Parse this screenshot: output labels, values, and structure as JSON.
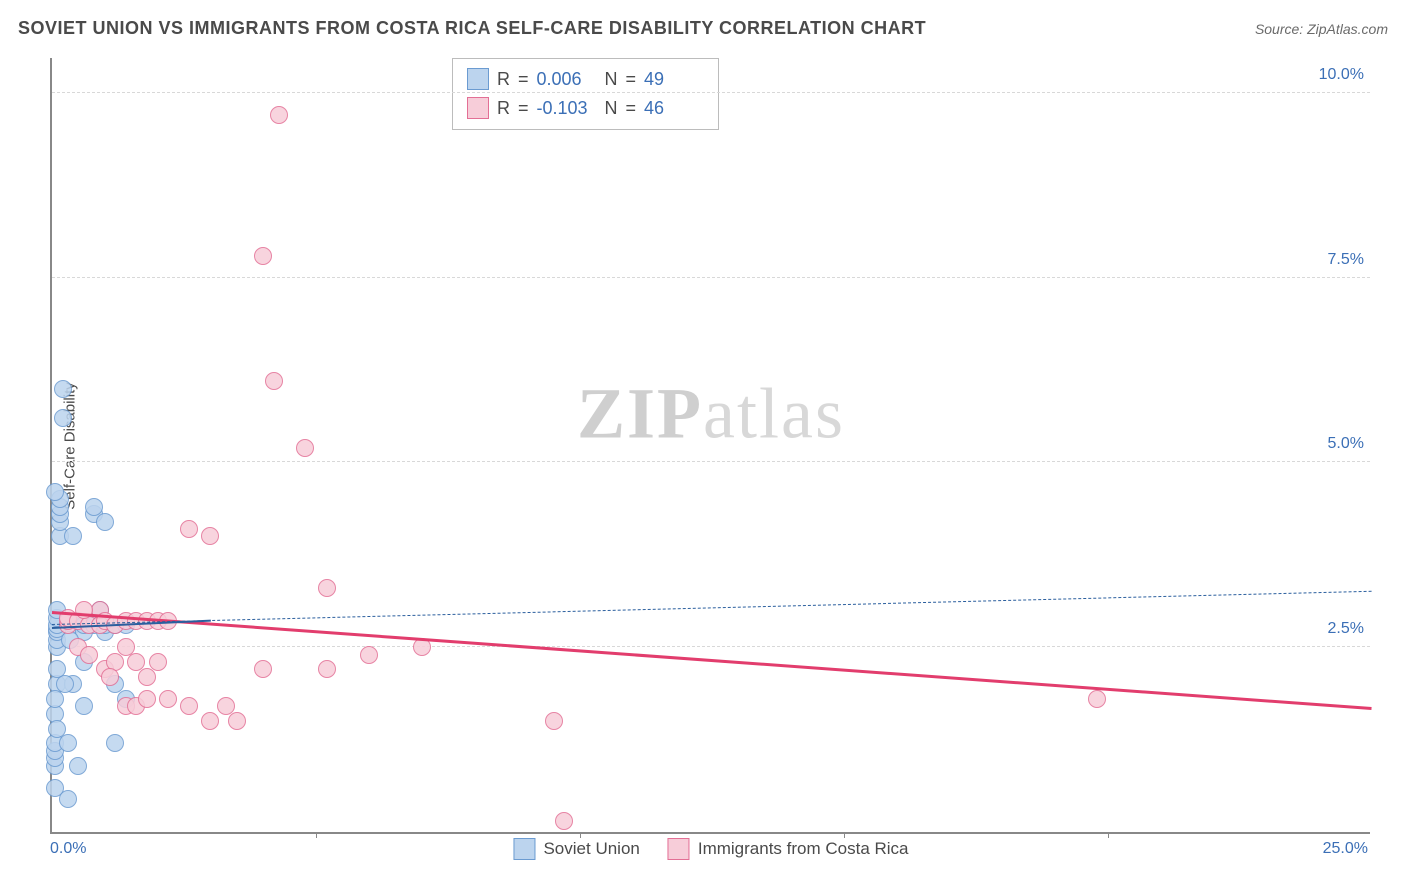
{
  "title": "SOVIET UNION VS IMMIGRANTS FROM COSTA RICA SELF-CARE DISABILITY CORRELATION CHART",
  "source_label": "Source: ",
  "source_value": "ZipAtlas.com",
  "ylabel": "Self-Care Disability",
  "watermark_a": "ZIP",
  "watermark_b": "atlas",
  "chart": {
    "type": "scatter",
    "xlim": [
      0,
      25
    ],
    "ylim": [
      0,
      10.5
    ],
    "x_ticks": [
      0,
      5,
      10,
      15,
      20,
      25
    ],
    "x_tick_labels": [
      "0.0%",
      "",
      "",
      "",
      "",
      "25.0%"
    ],
    "y_ticks": [
      2.5,
      5.0,
      7.5,
      10.0
    ],
    "y_tick_labels": [
      "2.5%",
      "5.0%",
      "7.5%",
      "10.0%"
    ],
    "grid_color": "#d8d8d8",
    "axis_color": "#888888",
    "background_color": "#ffffff",
    "marker_radius": 9,
    "marker_stroke_width": 1.5,
    "series": [
      {
        "name": "Soviet Union",
        "fill": "#bcd4ee",
        "stroke": "#6b9bd1",
        "stats": {
          "R": "0.006",
          "N": "49"
        },
        "trend": {
          "y_at_xmin": 2.8,
          "y_at_xmax": 3.25,
          "dash": true,
          "color": "#2b5f9e",
          "width": 1.5
        },
        "trend_solid": {
          "x1": 0,
          "y1": 2.75,
          "x2": 3.0,
          "y2": 2.85,
          "color": "#2b5f9e",
          "width": 2.5
        },
        "points": [
          [
            0.05,
            0.6
          ],
          [
            0.05,
            0.9
          ],
          [
            0.05,
            1.0
          ],
          [
            0.05,
            1.1
          ],
          [
            0.05,
            1.2
          ],
          [
            0.1,
            2.0
          ],
          [
            0.1,
            2.2
          ],
          [
            0.1,
            2.5
          ],
          [
            0.1,
            2.6
          ],
          [
            0.1,
            2.7
          ],
          [
            0.1,
            2.75
          ],
          [
            0.1,
            2.8
          ],
          [
            0.1,
            2.9
          ],
          [
            0.1,
            3.0
          ],
          [
            0.15,
            4.0
          ],
          [
            0.15,
            4.2
          ],
          [
            0.15,
            4.3
          ],
          [
            0.15,
            4.4
          ],
          [
            0.15,
            4.5
          ],
          [
            0.2,
            6.0
          ],
          [
            0.2,
            5.6
          ],
          [
            0.4,
            2.0
          ],
          [
            0.4,
            2.8
          ],
          [
            0.4,
            4.0
          ],
          [
            0.6,
            1.7
          ],
          [
            0.6,
            2.3
          ],
          [
            0.6,
            2.7
          ],
          [
            0.6,
            2.8
          ],
          [
            0.8,
            4.3
          ],
          [
            0.8,
            4.4
          ],
          [
            0.8,
            2.8
          ],
          [
            1.0,
            2.7
          ],
          [
            1.0,
            2.8
          ],
          [
            1.0,
            4.2
          ],
          [
            1.2,
            1.2
          ],
          [
            1.2,
            2.0
          ],
          [
            1.2,
            2.8
          ],
          [
            1.4,
            1.8
          ],
          [
            1.4,
            2.8
          ],
          [
            0.3,
            0.45
          ],
          [
            0.5,
            0.9
          ],
          [
            0.05,
            1.6
          ],
          [
            0.05,
            1.8
          ],
          [
            0.1,
            1.4
          ],
          [
            0.3,
            1.2
          ],
          [
            0.05,
            4.6
          ],
          [
            0.25,
            2.0
          ],
          [
            0.35,
            2.6
          ],
          [
            0.9,
            3.0
          ]
        ]
      },
      {
        "name": "Immigrants from Costa Rica",
        "fill": "#f7cdd9",
        "stroke": "#e36f95",
        "stats": {
          "R": "-0.103",
          "N": "46"
        },
        "trend": {
          "y_at_xmin": 2.95,
          "y_at_xmax": 1.65,
          "dash": false,
          "color": "#e23d6d",
          "width": 3
        },
        "points": [
          [
            0.3,
            2.8
          ],
          [
            0.3,
            2.85
          ],
          [
            0.3,
            2.9
          ],
          [
            0.5,
            2.5
          ],
          [
            0.5,
            2.85
          ],
          [
            0.7,
            2.4
          ],
          [
            0.7,
            2.8
          ],
          [
            0.9,
            2.8
          ],
          [
            0.9,
            3.0
          ],
          [
            1.0,
            2.2
          ],
          [
            1.0,
            2.85
          ],
          [
            1.2,
            2.3
          ],
          [
            1.2,
            2.8
          ],
          [
            1.4,
            1.7
          ],
          [
            1.4,
            2.5
          ],
          [
            1.4,
            2.85
          ],
          [
            1.6,
            1.7
          ],
          [
            1.6,
            2.3
          ],
          [
            1.6,
            2.85
          ],
          [
            1.8,
            1.8
          ],
          [
            1.8,
            2.1
          ],
          [
            1.8,
            2.85
          ],
          [
            2.0,
            2.3
          ],
          [
            2.0,
            2.85
          ],
          [
            2.2,
            1.8
          ],
          [
            2.2,
            2.85
          ],
          [
            2.6,
            1.7
          ],
          [
            2.6,
            4.1
          ],
          [
            3.0,
            1.5
          ],
          [
            3.0,
            4.0
          ],
          [
            3.3,
            1.7
          ],
          [
            3.5,
            1.5
          ],
          [
            4.0,
            2.2
          ],
          [
            4.0,
            7.8
          ],
          [
            4.2,
            6.1
          ],
          [
            4.3,
            9.7
          ],
          [
            4.8,
            5.2
          ],
          [
            5.2,
            2.2
          ],
          [
            5.2,
            3.3
          ],
          [
            6.0,
            2.4
          ],
          [
            7.0,
            2.5
          ],
          [
            9.5,
            1.5
          ],
          [
            9.7,
            0.15
          ],
          [
            19.8,
            1.8
          ],
          [
            1.1,
            2.1
          ],
          [
            0.6,
            3.0
          ]
        ]
      }
    ]
  },
  "stats_labels": {
    "R": "R",
    "eq": "=",
    "N": "N"
  },
  "legend": {
    "series1": "Soviet Union",
    "series2": "Immigrants from Costa Rica"
  }
}
